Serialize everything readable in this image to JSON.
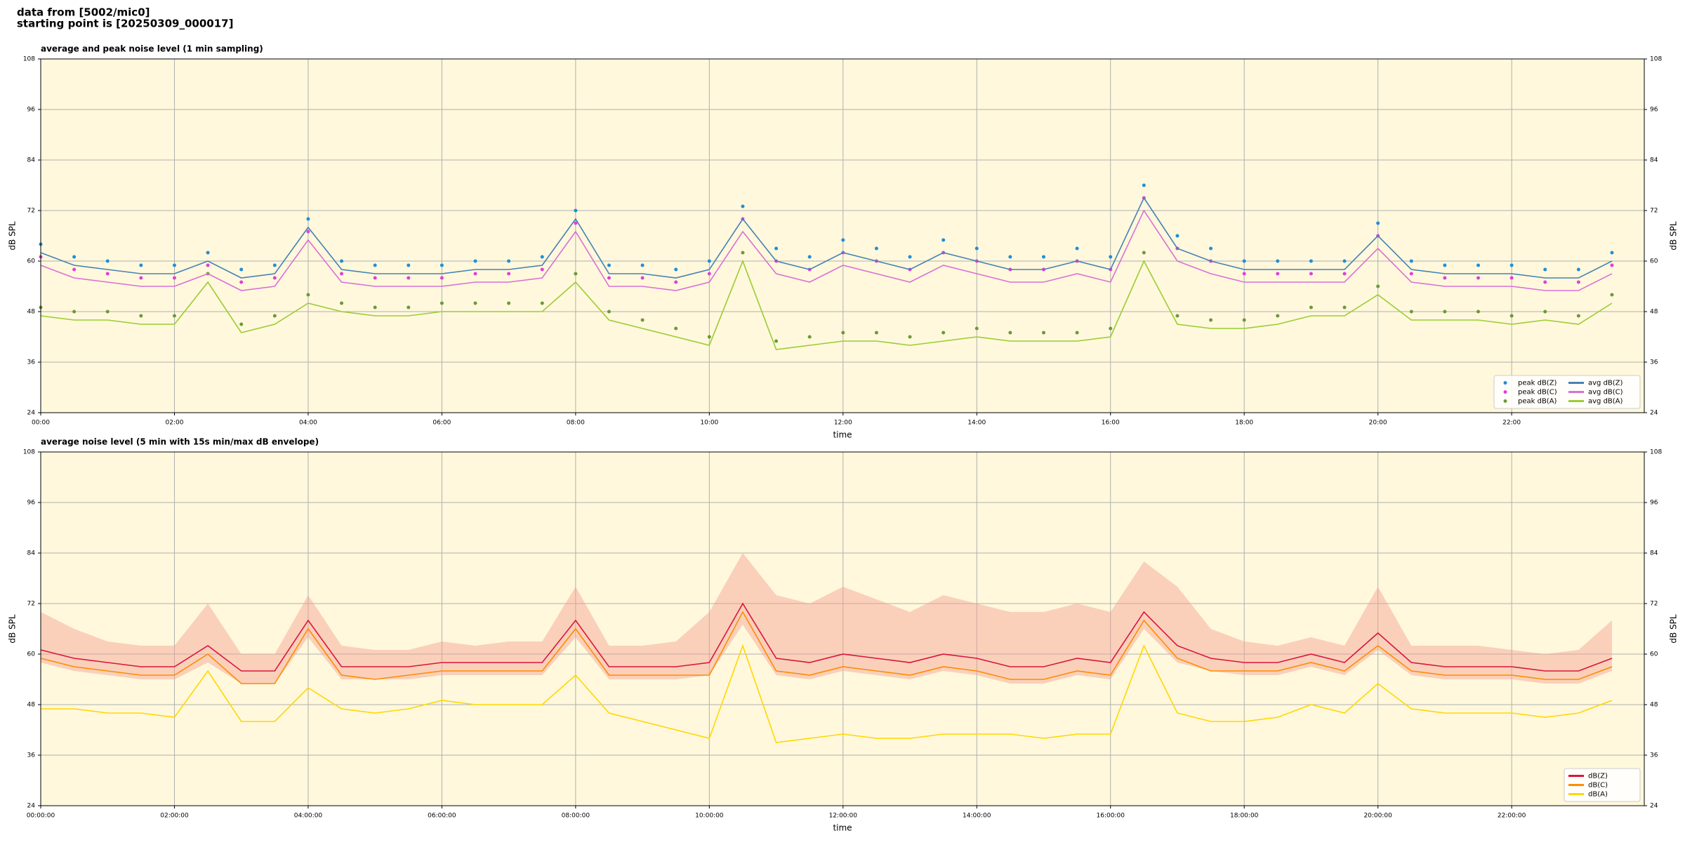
{
  "header": {
    "source": "data from [5002/mic0]",
    "start": "starting point is [20250309_000017]"
  },
  "chart_data": [
    {
      "type": "line",
      "title": "average and peak noise level (1 min sampling)",
      "xlabel": "time",
      "ylabel": "dB SPL",
      "x": [
        "00:00",
        "00:30",
        "01:00",
        "01:30",
        "02:00",
        "02:30",
        "03:00",
        "03:30",
        "04:00",
        "04:30",
        "05:00",
        "05:30",
        "06:00",
        "06:30",
        "07:00",
        "07:30",
        "08:00",
        "08:30",
        "09:00",
        "09:30",
        "10:00",
        "10:30",
        "11:00",
        "11:30",
        "12:00",
        "12:30",
        "13:00",
        "13:30",
        "14:00",
        "14:30",
        "15:00",
        "15:30",
        "16:00",
        "16:30",
        "17:00",
        "17:30",
        "18:00",
        "18:30",
        "19:00",
        "19:30",
        "20:00",
        "20:30",
        "21:00",
        "21:30",
        "22:00",
        "22:30",
        "23:00",
        "23:30"
      ],
      "xlim": [
        "00:00",
        "23:59"
      ],
      "xticks": [
        "00:00",
        "02:00",
        "04:00",
        "06:00",
        "08:00",
        "10:00",
        "12:00",
        "14:00",
        "16:00",
        "18:00",
        "20:00",
        "22:00"
      ],
      "ylim": [
        24,
        108
      ],
      "yticks": [
        24,
        36,
        48,
        60,
        72,
        84,
        96,
        108
      ],
      "grid": true,
      "background": "#fff8dc",
      "legend": "lower right",
      "legend_columns": 2,
      "series": [
        {
          "name": "peak dB(Z)",
          "kind": "scatter",
          "color": "#1f8fd8",
          "values": [
            64,
            61,
            60,
            59,
            59,
            62,
            58,
            59,
            70,
            60,
            59,
            59,
            59,
            60,
            60,
            61,
            72,
            59,
            59,
            58,
            60,
            73,
            63,
            61,
            65,
            63,
            61,
            65,
            63,
            61,
            61,
            63,
            61,
            78,
            66,
            63,
            60,
            60,
            60,
            60,
            69,
            60,
            59,
            59,
            59,
            58,
            58,
            62
          ]
        },
        {
          "name": "peak dB(C)",
          "kind": "scatter",
          "color": "#e040d8",
          "values": [
            61,
            58,
            57,
            56,
            56,
            59,
            55,
            56,
            67,
            57,
            56,
            56,
            56,
            57,
            57,
            58,
            69,
            56,
            56,
            55,
            57,
            70,
            60,
            58,
            62,
            60,
            58,
            62,
            60,
            58,
            58,
            60,
            58,
            75,
            63,
            60,
            57,
            57,
            57,
            57,
            66,
            57,
            56,
            56,
            56,
            55,
            55,
            59
          ]
        },
        {
          "name": "peak dB(A)",
          "kind": "scatter",
          "color": "#6b9a3a",
          "values": [
            49,
            48,
            48,
            47,
            47,
            57,
            45,
            47,
            52,
            50,
            49,
            49,
            50,
            50,
            50,
            50,
            57,
            48,
            46,
            44,
            42,
            62,
            41,
            42,
            43,
            43,
            42,
            43,
            44,
            43,
            43,
            43,
            44,
            62,
            47,
            46,
            46,
            47,
            49,
            49,
            54,
            48,
            48,
            48,
            47,
            48,
            47,
            52
          ]
        },
        {
          "name": "avg dB(Z)",
          "kind": "line",
          "color": "#4682b4",
          "values": [
            62,
            59,
            58,
            57,
            57,
            60,
            56,
            57,
            68,
            58,
            57,
            57,
            57,
            58,
            58,
            59,
            70,
            57,
            57,
            56,
            58,
            70,
            60,
            58,
            62,
            60,
            58,
            62,
            60,
            58,
            58,
            60,
            58,
            75,
            63,
            60,
            58,
            58,
            58,
            58,
            66,
            58,
            57,
            57,
            57,
            56,
            56,
            60
          ]
        },
        {
          "name": "avg dB(C)",
          "kind": "line",
          "color": "#da70d6",
          "values": [
            59,
            56,
            55,
            54,
            54,
            57,
            53,
            54,
            65,
            55,
            54,
            54,
            54,
            55,
            55,
            56,
            67,
            54,
            54,
            53,
            55,
            67,
            57,
            55,
            59,
            57,
            55,
            59,
            57,
            55,
            55,
            57,
            55,
            72,
            60,
            57,
            55,
            55,
            55,
            55,
            63,
            55,
            54,
            54,
            54,
            53,
            53,
            57
          ]
        },
        {
          "name": "avg dB(A)",
          "kind": "line",
          "color": "#9acd32",
          "values": [
            47,
            46,
            46,
            45,
            45,
            55,
            43,
            45,
            50,
            48,
            47,
            47,
            48,
            48,
            48,
            48,
            55,
            46,
            44,
            42,
            40,
            60,
            39,
            40,
            41,
            41,
            40,
            41,
            42,
            41,
            41,
            41,
            42,
            60,
            45,
            44,
            44,
            45,
            47,
            47,
            52,
            46,
            46,
            46,
            45,
            46,
            45,
            50
          ]
        }
      ]
    },
    {
      "type": "line",
      "title": "average noise level (5 min with 15s min/max dB envelope)",
      "xlabel": "time",
      "ylabel": "dB SPL",
      "x": [
        "00:00:00",
        "00:30:00",
        "01:00:00",
        "01:30:00",
        "02:00:00",
        "02:30:00",
        "03:00:00",
        "03:30:00",
        "04:00:00",
        "04:30:00",
        "05:00:00",
        "05:30:00",
        "06:00:00",
        "06:30:00",
        "07:00:00",
        "07:30:00",
        "08:00:00",
        "08:30:00",
        "09:00:00",
        "09:30:00",
        "10:00:00",
        "10:30:00",
        "11:00:00",
        "11:30:00",
        "12:00:00",
        "12:30:00",
        "13:00:00",
        "13:30:00",
        "14:00:00",
        "14:30:00",
        "15:00:00",
        "15:30:00",
        "16:00:00",
        "16:30:00",
        "17:00:00",
        "17:30:00",
        "18:00:00",
        "18:30:00",
        "19:00:00",
        "19:30:00",
        "20:00:00",
        "20:30:00",
        "21:00:00",
        "21:30:00",
        "22:00:00",
        "22:30:00",
        "23:00:00",
        "23:30:00"
      ],
      "xlim": [
        "00:00:00",
        "23:59:00"
      ],
      "xticks": [
        "00:00:00",
        "02:00:00",
        "04:00:00",
        "06:00:00",
        "08:00:00",
        "10:00:00",
        "12:00:00",
        "14:00:00",
        "16:00:00",
        "18:00:00",
        "20:00:00",
        "22:00:00"
      ],
      "ylim": [
        24,
        108
      ],
      "yticks": [
        24,
        36,
        48,
        60,
        72,
        84,
        96,
        108
      ],
      "grid": true,
      "background": "#fff8dc",
      "legend": "lower right",
      "legend_columns": 1,
      "envelope": {
        "color": "#f4a090",
        "low": [
          58,
          56,
          55,
          54,
          54,
          58,
          53,
          53,
          64,
          54,
          54,
          54,
          55,
          55,
          55,
          55,
          64,
          54,
          54,
          54,
          55,
          67,
          55,
          54,
          56,
          55,
          54,
          56,
          55,
          53,
          53,
          55,
          54,
          66,
          58,
          56,
          55,
          55,
          57,
          55,
          61,
          55,
          54,
          54,
          54,
          53,
          53,
          56
        ],
        "high": [
          70,
          66,
          63,
          62,
          62,
          72,
          60,
          60,
          74,
          62,
          61,
          61,
          63,
          62,
          63,
          63,
          76,
          62,
          62,
          63,
          70,
          84,
          74,
          72,
          76,
          73,
          70,
          74,
          72,
          70,
          70,
          72,
          70,
          82,
          76,
          66,
          63,
          62,
          64,
          62,
          76,
          62,
          62,
          62,
          61,
          60,
          61,
          68
        ]
      },
      "series": [
        {
          "name": "dB(Z)",
          "kind": "line",
          "color": "#dc143c",
          "values": [
            61,
            59,
            58,
            57,
            57,
            62,
            56,
            56,
            68,
            57,
            57,
            57,
            58,
            58,
            58,
            58,
            68,
            57,
            57,
            57,
            58,
            72,
            59,
            58,
            60,
            59,
            58,
            60,
            59,
            57,
            57,
            59,
            58,
            70,
            62,
            59,
            58,
            58,
            60,
            58,
            65,
            58,
            57,
            57,
            57,
            56,
            56,
            59
          ]
        },
        {
          "name": "dB(C)",
          "kind": "line",
          "color": "#ff8c00",
          "values": [
            59,
            57,
            56,
            55,
            55,
            60,
            53,
            53,
            66,
            55,
            54,
            55,
            56,
            56,
            56,
            56,
            66,
            55,
            55,
            55,
            55,
            70,
            56,
            55,
            57,
            56,
            55,
            57,
            56,
            54,
            54,
            56,
            55,
            68,
            59,
            56,
            56,
            56,
            58,
            56,
            62,
            56,
            55,
            55,
            55,
            54,
            54,
            57
          ]
        },
        {
          "name": "dB(A)",
          "kind": "line",
          "color": "#ffd700",
          "values": [
            47,
            47,
            46,
            46,
            45,
            56,
            44,
            44,
            52,
            47,
            46,
            47,
            49,
            48,
            48,
            48,
            55,
            46,
            44,
            42,
            40,
            62,
            39,
            40,
            41,
            40,
            40,
            41,
            41,
            41,
            40,
            41,
            41,
            62,
            46,
            44,
            44,
            45,
            48,
            46,
            53,
            47,
            46,
            46,
            46,
            45,
            46,
            49
          ]
        }
      ]
    }
  ]
}
